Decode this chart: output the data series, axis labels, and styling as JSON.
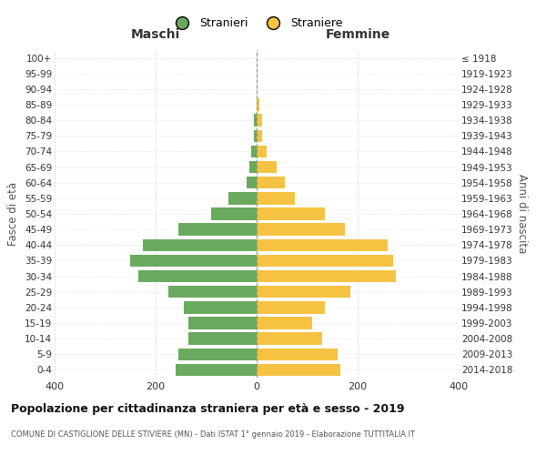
{
  "age_groups": [
    "0-4",
    "5-9",
    "10-14",
    "15-19",
    "20-24",
    "25-29",
    "30-34",
    "35-39",
    "40-44",
    "45-49",
    "50-54",
    "55-59",
    "60-64",
    "65-69",
    "70-74",
    "75-79",
    "80-84",
    "85-89",
    "90-94",
    "95-99",
    "100+"
  ],
  "birth_years": [
    "2014-2018",
    "2009-2013",
    "2004-2008",
    "1999-2003",
    "1994-1998",
    "1989-1993",
    "1984-1988",
    "1979-1983",
    "1974-1978",
    "1969-1973",
    "1964-1968",
    "1959-1963",
    "1954-1958",
    "1949-1953",
    "1944-1948",
    "1939-1943",
    "1934-1938",
    "1929-1933",
    "1924-1928",
    "1919-1923",
    "≤ 1918"
  ],
  "males": [
    160,
    155,
    135,
    135,
    145,
    175,
    235,
    250,
    225,
    155,
    90,
    55,
    20,
    15,
    10,
    5,
    5,
    0,
    0,
    0,
    0
  ],
  "females": [
    165,
    160,
    130,
    110,
    135,
    185,
    275,
    270,
    260,
    175,
    135,
    75,
    55,
    40,
    20,
    10,
    10,
    5,
    0,
    0,
    0
  ],
  "male_color": "#6aaa5e",
  "female_color": "#f5c242",
  "background_color": "#ffffff",
  "grid_color": "#cccccc",
  "center_line_color": "#999977",
  "title": "Popolazione per cittadinanza straniera per età e sesso - 2019",
  "subtitle": "COMUNE DI CASTIGLIONE DELLE STIVIERE (MN) - Dati ISTAT 1° gennaio 2019 - Elaborazione TUTTITALIA.IT",
  "left_header": "Maschi",
  "right_header": "Femmine",
  "y_left_label": "Fasce di età",
  "y_right_label": "Anni di nascita",
  "legend_male": "Stranieri",
  "legend_female": "Straniere",
  "xlim": 400
}
